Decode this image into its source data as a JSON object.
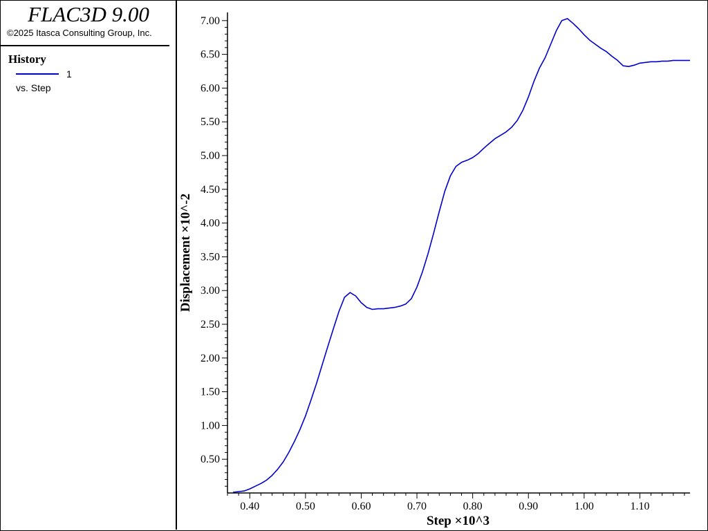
{
  "app": {
    "title": "FLAC3D 9.00",
    "copyright": "©2025 Itasca Consulting Group, Inc."
  },
  "legend": {
    "heading": "History",
    "series_label": "1",
    "vs_label": "vs. Step"
  },
  "colors": {
    "series": "#0000cc",
    "axis": "#000000",
    "background": "#ffffff"
  },
  "chart_data": {
    "type": "line",
    "xlabel": "Step ×10^3",
    "ylabel": "Displacement ×10^-2",
    "xlim": [
      0.36,
      1.19
    ],
    "ylim": [
      0.0,
      7.08
    ],
    "x_ticks": [
      "0.40",
      "0.50",
      "0.60",
      "0.70",
      "0.80",
      "0.90",
      "1.00",
      "1.10"
    ],
    "y_ticks": [
      "0.50",
      "1.00",
      "1.50",
      "2.00",
      "2.50",
      "3.00",
      "3.50",
      "4.00",
      "4.50",
      "5.00",
      "5.50",
      "6.00",
      "6.50",
      "7.00"
    ],
    "grid": false,
    "series": [
      {
        "name": "1",
        "x": [
          0.37,
          0.38,
          0.39,
          0.4,
          0.41,
          0.42,
          0.43,
          0.44,
          0.45,
          0.46,
          0.47,
          0.48,
          0.49,
          0.5,
          0.51,
          0.52,
          0.53,
          0.54,
          0.55,
          0.56,
          0.57,
          0.58,
          0.59,
          0.6,
          0.61,
          0.62,
          0.63,
          0.64,
          0.65,
          0.66,
          0.67,
          0.68,
          0.69,
          0.7,
          0.71,
          0.72,
          0.73,
          0.74,
          0.75,
          0.76,
          0.77,
          0.78,
          0.79,
          0.8,
          0.81,
          0.82,
          0.83,
          0.84,
          0.85,
          0.86,
          0.87,
          0.88,
          0.89,
          0.9,
          0.91,
          0.92,
          0.93,
          0.94,
          0.95,
          0.96,
          0.97,
          0.98,
          0.99,
          1.0,
          1.01,
          1.02,
          1.03,
          1.04,
          1.05,
          1.06,
          1.07,
          1.08,
          1.09,
          1.1,
          1.11,
          1.12,
          1.13,
          1.14,
          1.15,
          1.16,
          1.17,
          1.18,
          1.19
        ],
        "y": [
          0.01,
          0.02,
          0.03,
          0.06,
          0.1,
          0.14,
          0.19,
          0.26,
          0.35,
          0.46,
          0.6,
          0.76,
          0.94,
          1.14,
          1.38,
          1.63,
          1.9,
          2.17,
          2.43,
          2.69,
          2.9,
          2.97,
          2.92,
          2.82,
          2.75,
          2.72,
          2.73,
          2.73,
          2.74,
          2.75,
          2.77,
          2.8,
          2.88,
          3.05,
          3.28,
          3.55,
          3.85,
          4.17,
          4.47,
          4.7,
          4.84,
          4.9,
          4.93,
          4.97,
          5.03,
          5.11,
          5.18,
          5.25,
          5.3,
          5.35,
          5.42,
          5.52,
          5.67,
          5.87,
          6.1,
          6.3,
          6.45,
          6.65,
          6.85,
          7.0,
          7.03,
          6.96,
          6.88,
          6.79,
          6.71,
          6.65,
          6.59,
          6.54,
          6.47,
          6.41,
          6.33,
          6.32,
          6.34,
          6.37,
          6.38,
          6.39,
          6.39,
          6.4,
          6.4,
          6.41,
          6.41,
          6.41,
          6.41
        ]
      }
    ]
  }
}
